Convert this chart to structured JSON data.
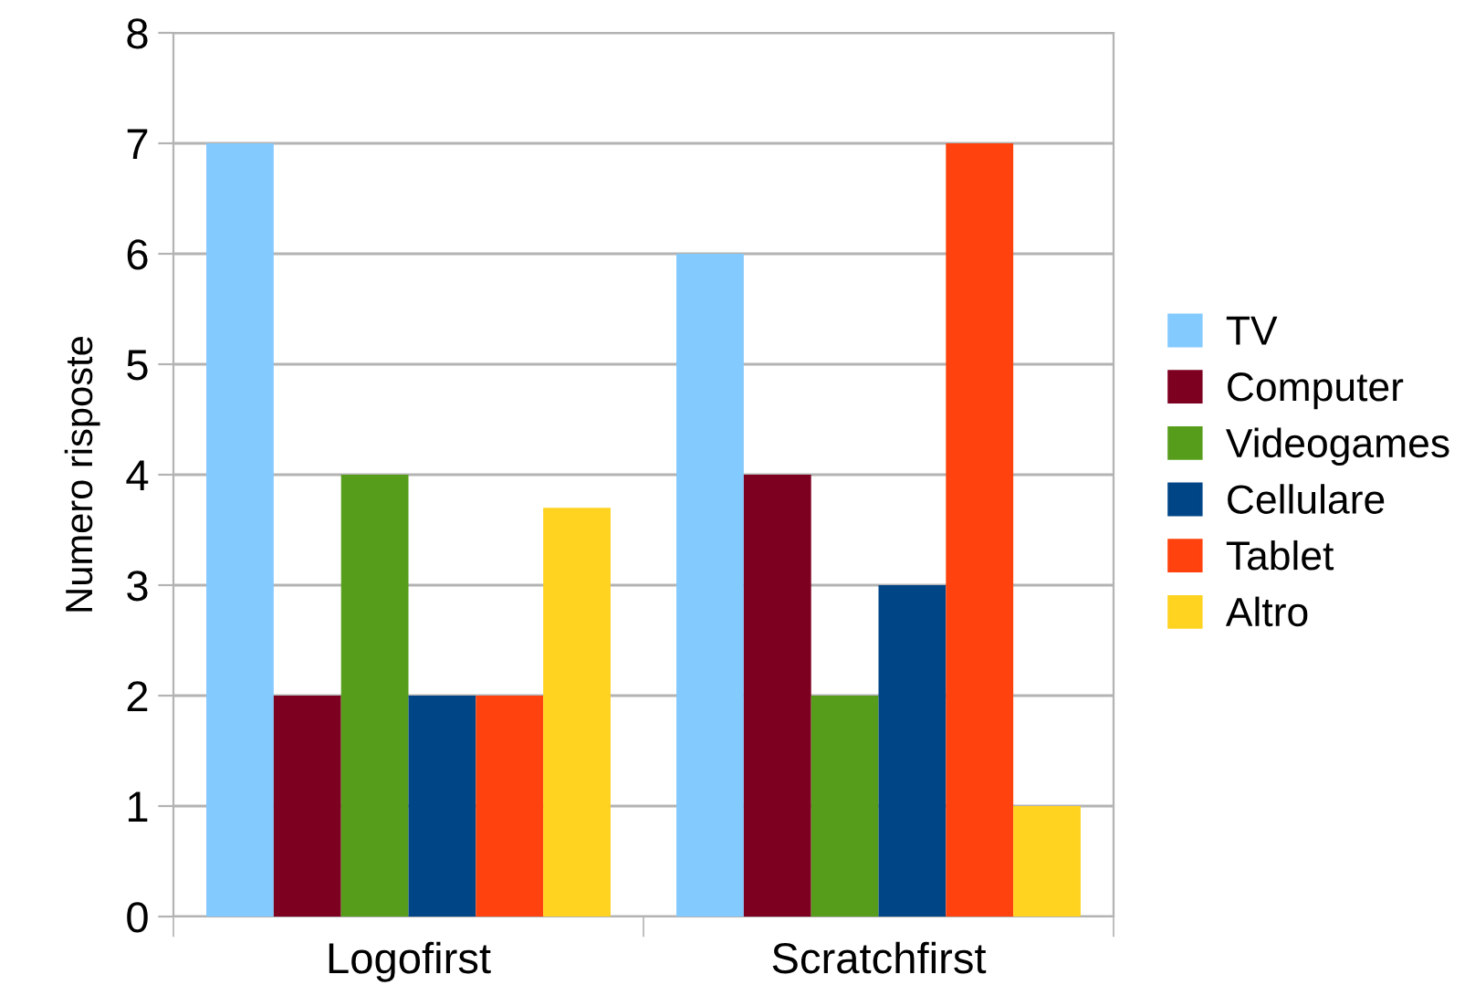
{
  "chart_data": {
    "type": "bar",
    "ylabel": "Numero risposte",
    "categories": [
      "Logofirst",
      "Scratchfirst"
    ],
    "series": [
      {
        "name": "TV",
        "color": "#83caff",
        "values": [
          7,
          6
        ]
      },
      {
        "name": "Computer",
        "color": "#7e0021",
        "values": [
          2,
          4
        ]
      },
      {
        "name": "Videogames",
        "color": "#579d1c",
        "values": [
          4,
          2
        ]
      },
      {
        "name": "Cellulare",
        "color": "#004586",
        "values": [
          2,
          3
        ]
      },
      {
        "name": "Tablet",
        "color": "#ff420e",
        "values": [
          2,
          7
        ]
      },
      {
        "name": "Altro",
        "color": "#ffd320",
        "values": [
          3.7,
          1
        ]
      }
    ],
    "ylim": [
      0,
      8
    ],
    "yticks": [
      0,
      1,
      2,
      3,
      4,
      5,
      6,
      7,
      8
    ],
    "grid": "y",
    "legend": "right"
  }
}
